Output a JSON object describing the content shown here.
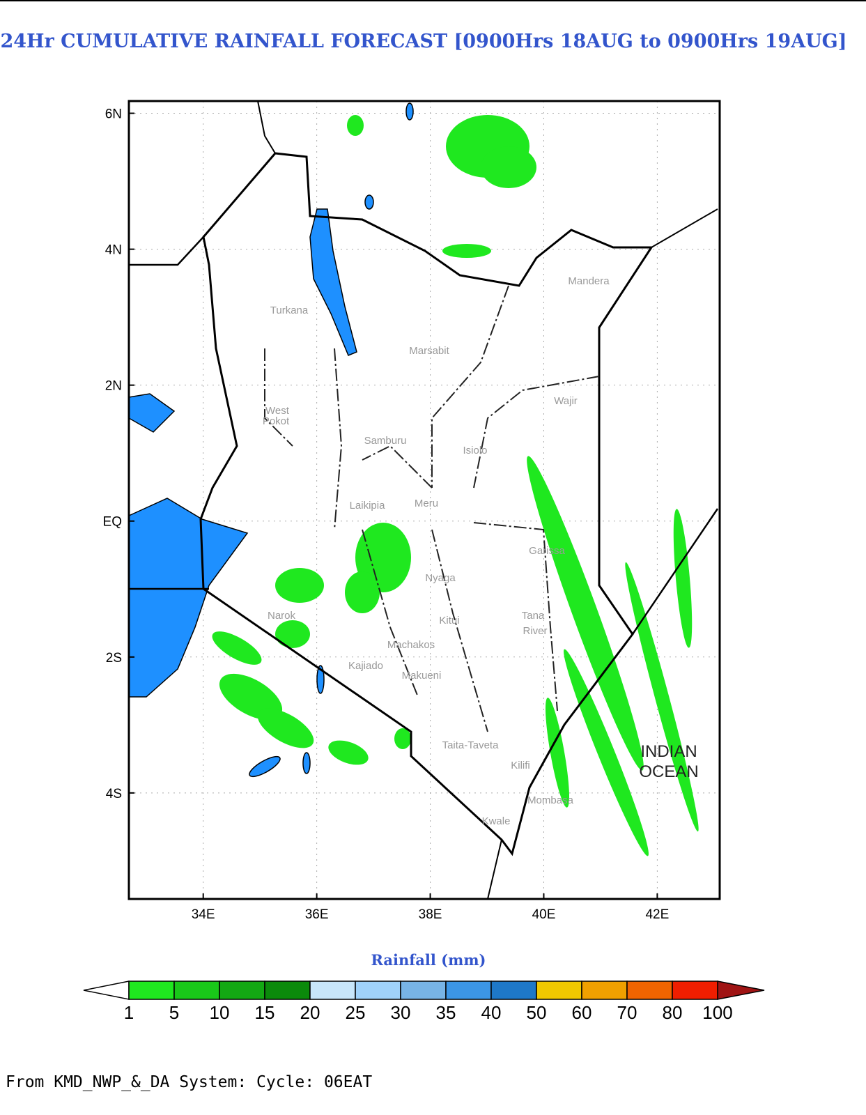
{
  "title": "24Hr CUMULATIVE RAINFALL FORECAST [0900Hrs 18AUG to 0900Hrs 19AUG]",
  "map": {
    "lon_range": [
      32.69,
      43.1
    ],
    "lat_range": [
      -5.56,
      6.18
    ],
    "lon_ticks": [
      {
        "value": 34,
        "label": "34E"
      },
      {
        "value": 36,
        "label": "36E"
      },
      {
        "value": 38,
        "label": "38E"
      },
      {
        "value": 40,
        "label": "40E"
      },
      {
        "value": 42,
        "label": "42E"
      }
    ],
    "lat_ticks": [
      {
        "value": 6,
        "label": "6N"
      },
      {
        "value": 4,
        "label": "4N"
      },
      {
        "value": 2,
        "label": "2N"
      },
      {
        "value": 0,
        "label": "EQ"
      },
      {
        "value": -2,
        "label": "2S"
      },
      {
        "value": -4,
        "label": "4S"
      }
    ],
    "place_labels": [
      "Turkana",
      "Marsabit",
      "Mandera",
      "Wajir",
      "West",
      "Pokot",
      "Samburu",
      "Isiolo",
      "Laikipia",
      "Garissa",
      "Kitui",
      "Tana",
      "River",
      "Kajiado",
      "Makueni",
      "Taita-Taveta",
      "Kilifi",
      "Mombasa",
      "Kwale",
      "Narok",
      "Machakos",
      "Nyaga",
      "Meru"
    ],
    "ocean_label": [
      "INDIAN",
      "OCEAN"
    ]
  },
  "colorbar": {
    "title": "Rainfall (mm)",
    "levels": [
      1,
      5,
      10,
      15,
      20,
      25,
      30,
      35,
      40,
      50,
      60,
      70,
      80,
      100
    ],
    "colors": [
      "#1fe81f",
      "#19c819",
      "#13a813",
      "#0b8a0b",
      "#c8e6fa",
      "#a0d2fa",
      "#78b4e6",
      "#3c96e6",
      "#1e78c8",
      "#f0c800",
      "#f0a000",
      "#f06400",
      "#f01e00"
    ],
    "under_color": "#ffffff",
    "over_color": "#a01414"
  },
  "footer": "From KMD_NWP_&_DA System: Cycle: 06EAT"
}
